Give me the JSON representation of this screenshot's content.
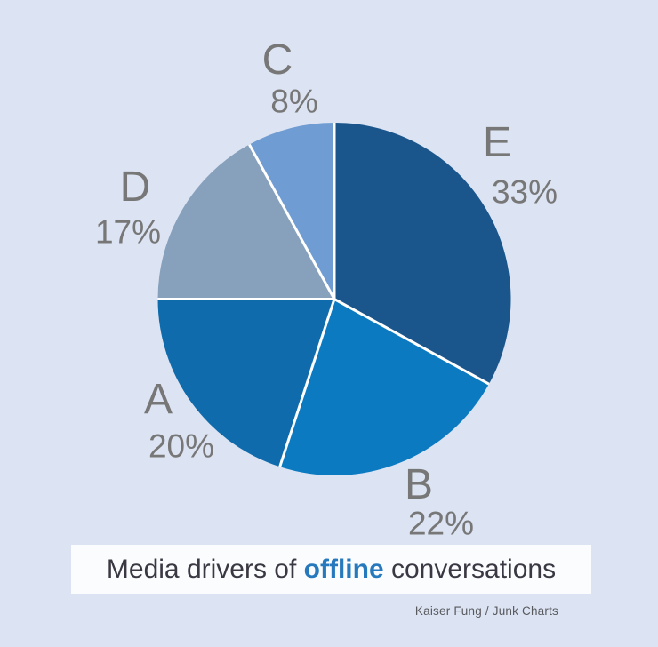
{
  "background_color": "#dce4f3",
  "chart_data": {
    "type": "pie",
    "title": "Media drivers of offline conversations",
    "legend": "none",
    "direction": "clockwise",
    "start_angle_deg": 0,
    "separator_color": "#ffffff",
    "slices": [
      {
        "label": "E",
        "value": 33,
        "pct_label": "33%",
        "color": "#1a568c"
      },
      {
        "label": "B",
        "value": 22,
        "pct_label": "22%",
        "color": "#0b7ac1"
      },
      {
        "label": "A",
        "value": 20,
        "pct_label": "20%",
        "color": "#0f6bab"
      },
      {
        "label": "D",
        "value": 17,
        "pct_label": "17%",
        "color": "#87a1bd"
      },
      {
        "label": "C",
        "value": 8,
        "pct_label": "8%",
        "color": "#6f9cd2"
      }
    ]
  },
  "title": {
    "prefix": "Media drivers of ",
    "highlight": "offline",
    "suffix": " conversations",
    "highlight_color": "#2779bd"
  },
  "credit": "Kaiser Fung / Junk Charts",
  "label_color": "#777777"
}
